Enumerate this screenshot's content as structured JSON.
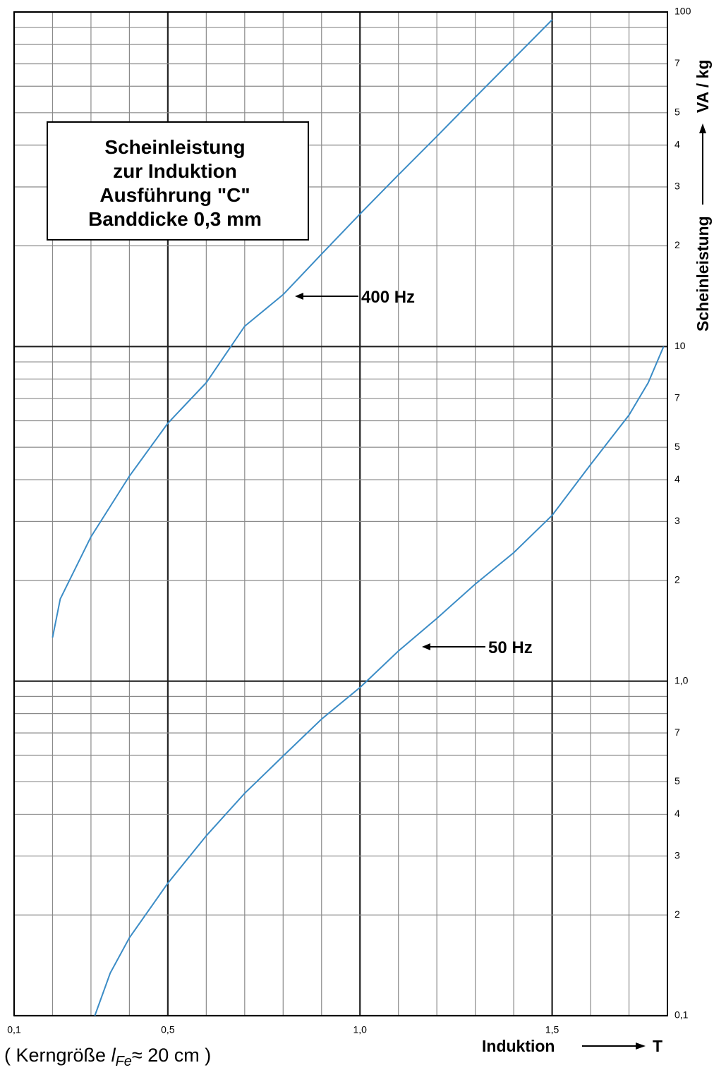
{
  "chart_data": {
    "type": "line",
    "title": [
      "Scheinleistung",
      "zur Induktion",
      "Ausführung \"C\"",
      "Banddicke 0,3 mm"
    ],
    "ylabel": "Scheinleistung",
    "yunit": "VA / kg",
    "xlabel": "Induktion",
    "xunit": "T",
    "footnote": [
      "( Kerngröße ",
      "l",
      "Fe",
      "≈ 20 cm )"
    ],
    "annotations": [
      "400 Hz",
      "50 Hz"
    ],
    "xlim": [
      0.1,
      1.8
    ],
    "xticks": [
      {
        "value": 0.1,
        "label": "0,1"
      },
      {
        "value": 0.5,
        "label": "0,5"
      },
      {
        "value": 1.0,
        "label": "1,0"
      },
      {
        "value": 1.5,
        "label": "1,5"
      }
    ],
    "xminor_ticks": [
      0.2,
      0.3,
      0.4,
      0.6,
      0.7,
      0.8,
      0.9,
      1.1,
      1.2,
      1.3,
      1.4,
      1.6,
      1.7
    ],
    "ylim": [
      0.1,
      100
    ],
    "log_y": true,
    "yticks": [
      100,
      {
        "value": 70,
        "label": "7"
      },
      {
        "value": 50,
        "label": "5"
      },
      {
        "value": 40,
        "label": "4"
      },
      {
        "value": 30,
        "label": "3"
      },
      {
        "value": 20,
        "label": "2"
      },
      10,
      7,
      5,
      4,
      3,
      2,
      {
        "value": 1,
        "label": "1,0"
      },
      {
        "value": 0.7,
        "label": "7"
      },
      {
        "value": 0.5,
        "label": "5"
      },
      {
        "value": 0.4,
        "label": "4"
      },
      {
        "value": 0.3,
        "label": "3"
      },
      {
        "value": 0.2,
        "label": "2"
      },
      {
        "value": 0.1,
        "label": "0,1"
      }
    ],
    "yminor_ticks": [
      90,
      80,
      60,
      9,
      8,
      6,
      0.9,
      0.8,
      0.6
    ],
    "grid": true,
    "series": [
      {
        "name": "400 Hz",
        "color": "#3b8cc6",
        "x": [
          0.2,
          0.22,
          0.3,
          0.4,
          0.5,
          0.6,
          0.7,
          0.8,
          0.9,
          1.0,
          1.1,
          1.2,
          1.3,
          1.4,
          1.5
        ],
        "values": [
          1.35,
          1.76,
          2.7,
          4.1,
          5.9,
          7.8,
          11.5,
          14.3,
          18.9,
          24.9,
          32.6,
          42.5,
          55.6,
          72.6,
          94.8
        ]
      },
      {
        "name": "50 Hz",
        "color": "#3b8cc6",
        "x": [
          0.31,
          0.35,
          0.4,
          0.5,
          0.6,
          0.7,
          0.8,
          0.9,
          1.0,
          1.1,
          1.2,
          1.3,
          1.4,
          1.5,
          1.6,
          1.7,
          1.75,
          1.79
        ],
        "values": [
          0.1,
          0.134,
          0.171,
          0.249,
          0.345,
          0.462,
          0.597,
          0.77,
          0.957,
          1.23,
          1.54,
          1.95,
          2.42,
          3.13,
          4.44,
          6.24,
          7.8,
          10
        ]
      }
    ]
  }
}
